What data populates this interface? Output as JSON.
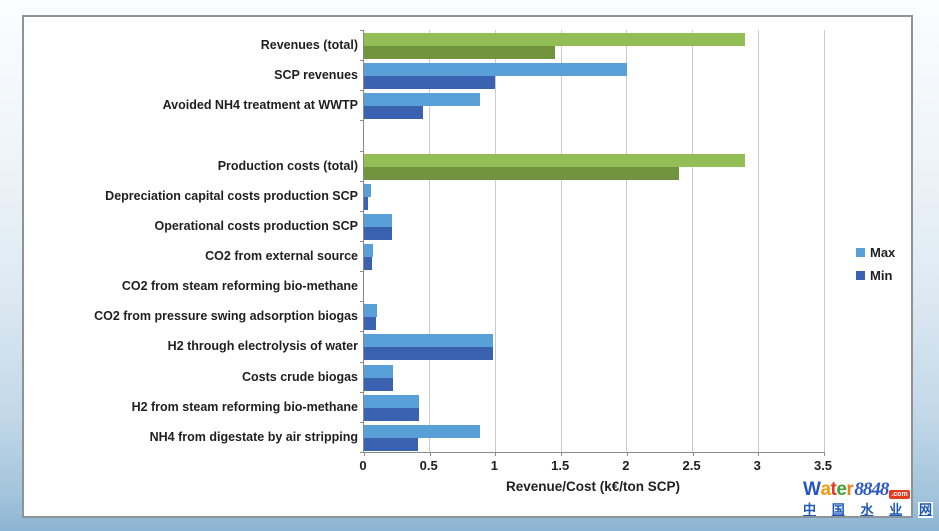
{
  "chart_data": {
    "type": "bar",
    "orientation": "horizontal",
    "title": "",
    "xlabel": "Revenue/Cost (k€/ton SCP)",
    "ylabel": "",
    "xlim": [
      0,
      3.5
    ],
    "xtick_step": 0.5,
    "xtick_labels": [
      "0",
      "0.5",
      "1",
      "1.5",
      "2",
      "2.5",
      "3",
      "3.5"
    ],
    "grid": true,
    "legend_position": "right",
    "categories": [
      "Revenues (total)",
      "SCP revenues",
      "Avoided NH4 treatment at WWTP",
      "",
      "Production costs (total)",
      "Depreciation capital costs production SCP",
      "Operational costs production SCP",
      "CO2 from external source",
      "CO2 from steam reforming bio-methane",
      "CO2 from pressure swing adsorption biogas",
      "H2 through electrolysis of water",
      "Costs crude biogas",
      "H2 from steam reforming bio-methane",
      "NH4 from digestate by air stripping"
    ],
    "series": [
      {
        "name": "Max",
        "values": [
          2.9,
          2.0,
          0.88,
          0,
          2.9,
          0.05,
          0.21,
          0.07,
          0,
          0.1,
          0.98,
          0.22,
          0.42,
          0.88
        ]
      },
      {
        "name": "Min",
        "values": [
          1.45,
          1.0,
          0.45,
          0,
          2.4,
          0.03,
          0.21,
          0.06,
          0,
          0.09,
          0.98,
          0.22,
          0.42,
          0.41
        ]
      }
    ],
    "row_palette": [
      "green",
      "blue",
      "blue",
      "blue",
      "green",
      "blue",
      "blue",
      "blue",
      "blue",
      "blue",
      "blue",
      "blue",
      "blue",
      "blue"
    ],
    "colors": {
      "max_blue": "#5AA0D8",
      "min_blue": "#3A62B0",
      "max_green": "#93BD55",
      "min_green": "#73943E",
      "gridline": "#CACACA",
      "axis": "#8A8A8A",
      "label_text": "#1F1F1F"
    },
    "legend": [
      {
        "label": "Max",
        "color": "#5AA0D8"
      },
      {
        "label": "Min",
        "color": "#3A62B0"
      }
    ]
  },
  "watermark": {
    "brand_letters": [
      {
        "ch": "W",
        "color": "#2155C4"
      },
      {
        "ch": "a",
        "color": "#F59B0A"
      },
      {
        "ch": "t",
        "color": "#E23B24"
      },
      {
        "ch": "e",
        "color": "#3FA33C"
      },
      {
        "ch": "r",
        "color": "#F0821E"
      }
    ],
    "brand_number": {
      "text": "8848",
      "color": "#2B58C8"
    },
    "suffix": {
      "text": ".com",
      "color": "#FFFFFF",
      "bg": "#E23B1E"
    },
    "tagline": {
      "chars": [
        "中",
        "国",
        "水",
        "业",
        "网"
      ],
      "color": "#1C57B5"
    }
  }
}
